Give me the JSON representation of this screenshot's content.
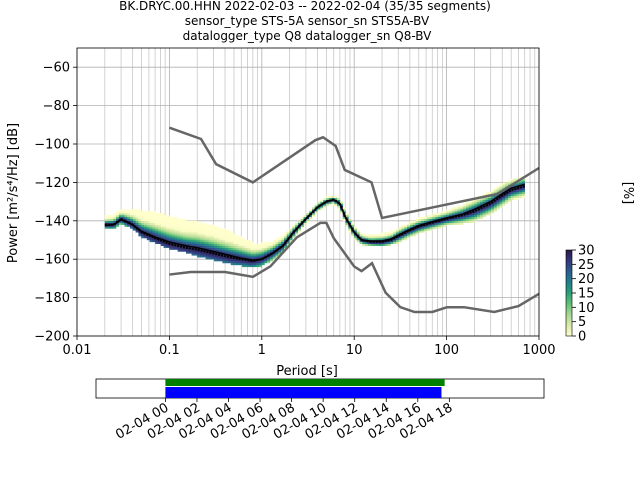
{
  "title": {
    "line1": "BK.DRYC.00.HHN   2022-02-03 -- 2022-02-04  (35/35 segments)",
    "line2": "sensor_type STS-5A sensor_sn STS5A-BV",
    "line3": "datalogger_type Q8 datalogger_sn Q8-BV"
  },
  "chart_data": {
    "type": "heatmap",
    "xlabel": "Period [s]",
    "ylabel": "Power [m²/s⁴/Hz] [dB]",
    "xscale": "log",
    "xlim": [
      0.01,
      1000
    ],
    "ylim": [
      -200,
      -50
    ],
    "x_ticks": [
      "0.01",
      "0.1",
      "1",
      "10",
      "100",
      "1000"
    ],
    "y_ticks": [
      "−60",
      "−80",
      "−100",
      "−120",
      "−140",
      "−160",
      "−180",
      "−200"
    ],
    "y_tick_values": [
      -60,
      -80,
      -100,
      -120,
      -140,
      -160,
      -180,
      -200
    ],
    "grid": true,
    "colorbar": {
      "label": "[%]",
      "range": [
        0,
        30
      ],
      "ticks": [
        "0",
        "5",
        "10",
        "15",
        "20",
        "25",
        "30"
      ],
      "tick_values": [
        0,
        5,
        10,
        15,
        20,
        25,
        30
      ]
    },
    "nhnm": {
      "period": [
        0.1,
        0.22,
        0.32,
        0.8,
        3.8,
        4.6,
        6.3,
        7.9,
        15.4,
        20,
        354.8,
        1000
      ],
      "power": [
        -91.5,
        -97.4,
        -110.5,
        -120,
        -98,
        -96.5,
        -101,
        -113.5,
        -120,
        -138.5,
        -126,
        -112.5
      ]
    },
    "nlnm": {
      "period": [
        0.1,
        0.17,
        0.4,
        0.8,
        1.24,
        2.4,
        4.3,
        5.0,
        6.0,
        10.0,
        12.0,
        15.6,
        21.9,
        31.6,
        45,
        70,
        101,
        154,
        328,
        600,
        1000
      ],
      "power": [
        -168,
        -166.7,
        -166.7,
        -169.2,
        -163.7,
        -148.6,
        -141.1,
        -141.1,
        -149,
        -163.8,
        -166.2,
        -162.1,
        -177.5,
        -185,
        -187.5,
        -187.5,
        -185,
        -185,
        -187.5,
        -184.4,
        -178
      ]
    },
    "mode_curve": {
      "period": [
        0.02,
        0.025,
        0.03,
        0.04,
        0.05,
        0.07,
        0.1,
        0.15,
        0.2,
        0.3,
        0.45,
        0.6,
        0.8,
        1.0,
        1.3,
        1.7,
        2.2,
        3,
        4,
        5,
        6,
        7,
        8,
        10,
        12,
        15,
        20,
        25,
        30,
        40,
        50,
        70,
        100,
        150,
        200,
        300,
        400,
        500,
        700
      ],
      "power": [
        -142,
        -142,
        -139,
        -142,
        -146,
        -149,
        -152,
        -154,
        -155,
        -157,
        -159,
        -160,
        -161,
        -160,
        -157,
        -153,
        -146,
        -139,
        -133,
        -130,
        -129,
        -131,
        -138,
        -146,
        -150,
        -151,
        -151,
        -150,
        -148,
        -145,
        -143,
        -141,
        -139,
        -137,
        -135,
        -131,
        -127,
        -124,
        -122
      ]
    },
    "mean_curve": {
      "period": [
        0.02,
        0.025,
        0.03,
        0.04,
        0.05,
        0.07,
        0.1,
        0.15,
        0.2,
        0.3,
        0.45,
        0.6,
        0.8,
        1.0,
        1.3,
        1.7,
        2.2,
        3,
        4,
        5,
        6,
        7,
        8,
        10,
        12,
        15,
        20,
        25,
        30,
        40,
        50,
        70,
        100,
        150,
        200,
        300,
        400,
        500,
        700
      ],
      "power": [
        -142.5,
        -142,
        -139.5,
        -142,
        -145.5,
        -148.5,
        -151,
        -153,
        -154,
        -156,
        -158,
        -159.5,
        -160.5,
        -160,
        -157,
        -153,
        -146,
        -139,
        -133,
        -130,
        -129,
        -131,
        -138,
        -146,
        -150,
        -150.5,
        -150.5,
        -149.5,
        -147.5,
        -144.5,
        -142.5,
        -140.5,
        -138.5,
        -136.5,
        -134,
        -130,
        -126,
        -123,
        -121
      ]
    },
    "spread": {
      "period": [
        0.02,
        0.025,
        0.03,
        0.04,
        0.05,
        0.07,
        0.1,
        0.15,
        0.2,
        0.3,
        0.45,
        0.6,
        0.8,
        1.0,
        1.3,
        1.7,
        2.2,
        3,
        4,
        5,
        6,
        7,
        8,
        10,
        12,
        15,
        20,
        25,
        30,
        40,
        50,
        70,
        100,
        150,
        200,
        300,
        400,
        500,
        700
      ],
      "upper": [
        -138,
        -137,
        -134,
        -134,
        -135,
        -136,
        -138,
        -140,
        -141,
        -143,
        -146,
        -149,
        -152,
        -152,
        -151,
        -148,
        -143,
        -137,
        -131,
        -128,
        -127.5,
        -129,
        -135,
        -143,
        -147,
        -148,
        -147,
        -146,
        -144,
        -141,
        -139,
        -137,
        -135,
        -132,
        -129,
        -125,
        -121,
        -119,
        -117
      ],
      "lower": [
        -144,
        -144,
        -141,
        -144,
        -148,
        -151,
        -154,
        -156,
        -158,
        -160,
        -162,
        -163,
        -164,
        -163,
        -160,
        -156,
        -149,
        -141,
        -135,
        -132,
        -131,
        -134,
        -141,
        -149,
        -152,
        -153,
        -153,
        -152,
        -151,
        -148,
        -146,
        -144,
        -142,
        -141,
        -140,
        -136,
        -132,
        -129,
        -127
      ]
    }
  },
  "timeline": {
    "ticks": [
      "02-04 00",
      "02-04 02",
      "02-04 04",
      "02-04 06",
      "02-04 08",
      "02-04 10",
      "02-04 12",
      "02-04 14",
      "02-04 16",
      "02-04 18"
    ],
    "tick_hours": [
      0,
      2,
      4,
      6,
      8,
      10,
      12,
      14,
      16,
      18
    ],
    "range_hours": [
      -4.4,
      24
    ],
    "green_bar": [
      0,
      17.7
    ],
    "blue_bar": [
      0,
      17.5
    ],
    "green_color": "#008000",
    "blue_color": "#0000ff"
  }
}
